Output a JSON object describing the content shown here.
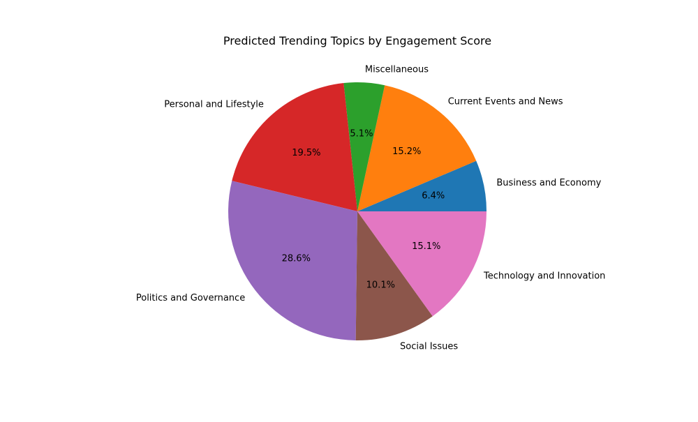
{
  "chart_data": {
    "type": "pie",
    "title": "Predicted Trending Topics by Engagement Score",
    "start_angle_deg": 0,
    "direction": "counterclockwise",
    "slices": [
      {
        "label": "Business and Economy",
        "percent": 6.4,
        "percent_label": "6.4%",
        "color": "#1f77b4"
      },
      {
        "label": "Current Events and News",
        "percent": 15.2,
        "percent_label": "15.2%",
        "color": "#ff7f0e"
      },
      {
        "label": "Miscellaneous",
        "percent": 5.1,
        "percent_label": "5.1%",
        "color": "#2ca02c"
      },
      {
        "label": "Personal and Lifestyle",
        "percent": 19.5,
        "percent_label": "19.5%",
        "color": "#d62728"
      },
      {
        "label": "Politics and Governance",
        "percent": 28.6,
        "percent_label": "28.6%",
        "color": "#9467bd"
      },
      {
        "label": "Social Issues",
        "percent": 10.1,
        "percent_label": "10.1%",
        "color": "#8c564b"
      },
      {
        "label": "Technology and Innovation",
        "percent": 15.1,
        "percent_label": "15.1%",
        "color": "#e377c2"
      }
    ]
  }
}
